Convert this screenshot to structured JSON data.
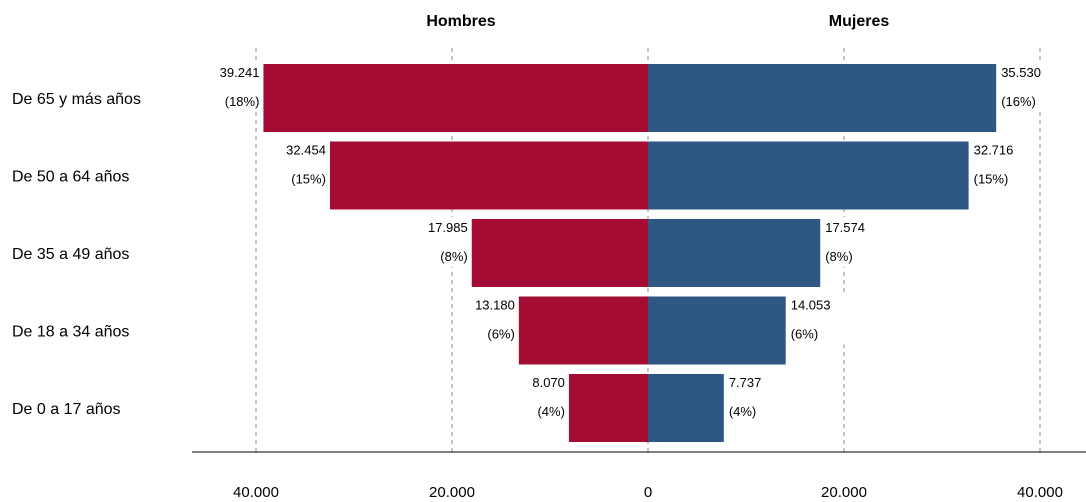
{
  "chart_data": {
    "type": "bar",
    "orientation": "horizontal",
    "layout": "population-pyramid",
    "categories": [
      "De 65 y más años",
      "De 50 a 64 años",
      "De 35 a 49 años",
      "De 18 a 34 años",
      "De 0 a 17 años"
    ],
    "series": [
      {
        "name": "Hombres",
        "side": "left",
        "color": "#A50C34",
        "values": [
          39241,
          32454,
          17985,
          13180,
          8070
        ],
        "value_labels": [
          "39.241",
          "32.454",
          "17.985",
          "13.180",
          "8.070"
        ],
        "percent_labels": [
          "(18%)",
          "(15%)",
          "(8%)",
          "(6%)",
          "(4%)"
        ]
      },
      {
        "name": "Mujeres",
        "side": "right",
        "color": "#2E5883",
        "values": [
          35530,
          32716,
          17574,
          14053,
          7737
        ],
        "value_labels": [
          "35.530",
          "32.716",
          "17.574",
          "14.053",
          "7.737"
        ],
        "percent_labels": [
          "(16%)",
          "(15%)",
          "(8%)",
          "(6%)",
          "(4%)"
        ]
      }
    ],
    "xlim": [
      -44000,
      44000
    ],
    "x_ticks": [
      {
        "value": -40000,
        "label": "40.000"
      },
      {
        "value": -20000,
        "label": "20.000"
      },
      {
        "value": 0,
        "label": "0"
      },
      {
        "value": 20000,
        "label": "20.000"
      },
      {
        "value": 40000,
        "label": "40.000"
      }
    ],
    "grid": "vertical dashed",
    "legend": "none"
  }
}
